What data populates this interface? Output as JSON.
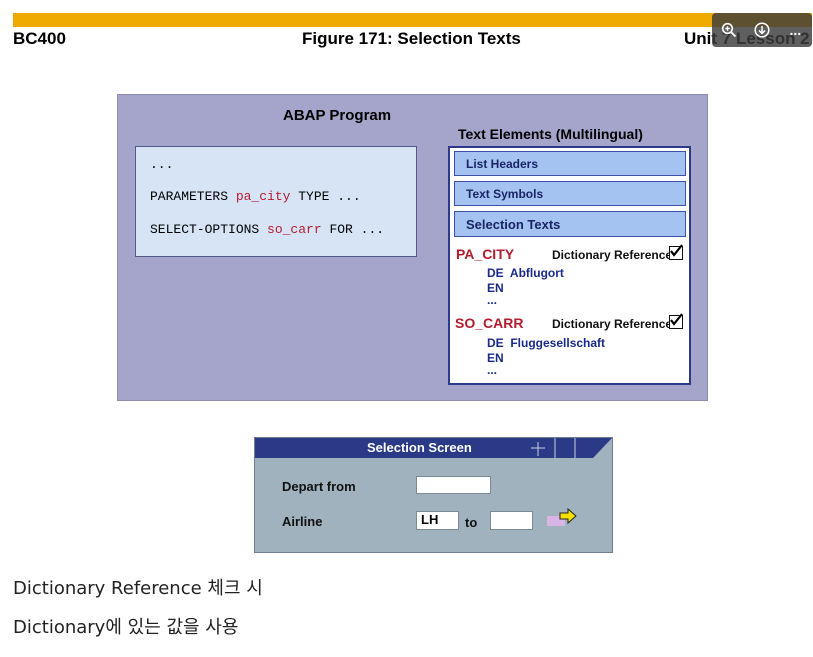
{
  "header": {
    "left": "BC400",
    "center": "Figure 171: Selection Texts",
    "right": "Unit 7 Lesson 2"
  },
  "viewer_tools": [
    {
      "icon": "zoom-in-icon"
    },
    {
      "icon": "download-icon"
    },
    {
      "icon": "more-icon",
      "label": "..."
    }
  ],
  "abap": {
    "title": "ABAP Program",
    "line1": "...",
    "line2": {
      "kw1": "PARAMETERS ",
      "param": "pa_city",
      "rest": " TYPE ..."
    },
    "line3": {
      "kw1": "SELECT-OPTIONS ",
      "param": "so_carr",
      "rest": " FOR ..."
    }
  },
  "text_elements": {
    "title": "Text Elements (Multilingual)",
    "tabs": [
      "List Headers",
      "Text Symbols",
      "Selection Texts"
    ],
    "entries": [
      {
        "name": "PA_CITY",
        "dict_ref": "Dictionary Reference",
        "checked": true,
        "langs": [
          {
            "code": "DE",
            "text": "Abflugort"
          },
          {
            "code": "EN",
            "text": ""
          },
          {
            "code": "...",
            "text": ""
          }
        ]
      },
      {
        "name": "SO_CARR",
        "dict_ref": "Dictionary Reference",
        "checked": true,
        "langs": [
          {
            "code": "DE",
            "text": "Fluggesellschaft"
          },
          {
            "code": "EN",
            "text": ""
          },
          {
            "code": "...",
            "text": ""
          }
        ]
      }
    ]
  },
  "selection_screen": {
    "title": "Selection Screen",
    "depart_label": "Depart from",
    "depart_value": "",
    "airline_label": "Airline",
    "airline_from": "LH",
    "to_label": "to",
    "airline_to": ""
  },
  "captions": [
    "Dictionary Reference 체크 시",
    "Dictionary에 있는 값을 사용"
  ],
  "colors": {
    "accent_bar": "#f0ab00",
    "slide_bg": "#a5a5cc",
    "keyword_red": "#b51b2e",
    "title_bar": "#2b3a86"
  }
}
